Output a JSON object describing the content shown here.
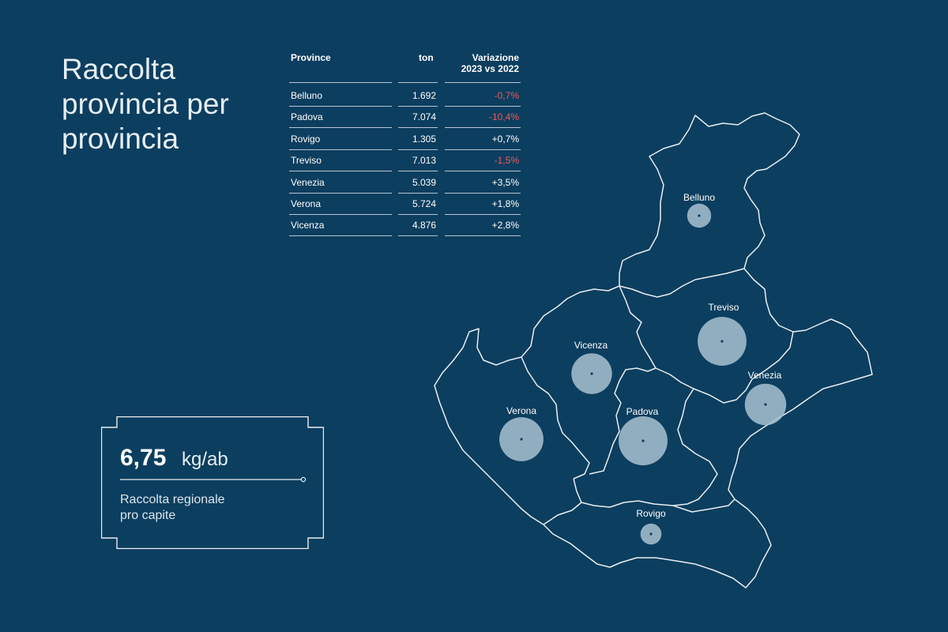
{
  "title": {
    "line1": "Raccolta",
    "line2": "provincia per",
    "line3": "provincia"
  },
  "table": {
    "headers": {
      "province": "Province",
      "ton": "ton",
      "variation_line1": "Variazione",
      "variation_line2": "2023 vs 2022"
    },
    "rows": [
      {
        "province": "Belluno",
        "ton": "1.692",
        "variation": "-0,7%",
        "negative": true
      },
      {
        "province": "Padova",
        "ton": "7.074",
        "variation": "-10,4%",
        "negative": true
      },
      {
        "province": "Rovigo",
        "ton": "1.305",
        "variation": "+0,7%",
        "negative": false
      },
      {
        "province": "Treviso",
        "ton": "7.013",
        "variation": "-1,5%",
        "negative": true
      },
      {
        "province": "Venezia",
        "ton": "5.039",
        "variation": "+3,5%",
        "negative": false
      },
      {
        "province": "Verona",
        "ton": "5.724",
        "variation": "+1,8%",
        "negative": false
      },
      {
        "province": "Vicenza",
        "ton": "4.876",
        "variation": "+2,8%",
        "negative": false
      }
    ]
  },
  "stat": {
    "value": "6,75",
    "unit": "kg/ab",
    "caption_line1": "Raccolta regionale",
    "caption_line2": "pro capite"
  },
  "map": {
    "provinces": [
      {
        "name": "Belluno",
        "ton": 1692
      },
      {
        "name": "Treviso",
        "ton": 7013
      },
      {
        "name": "Vicenza",
        "ton": 4876
      },
      {
        "name": "Venezia",
        "ton": 5039
      },
      {
        "name": "Verona",
        "ton": 5724
      },
      {
        "name": "Padova",
        "ton": 7074
      },
      {
        "name": "Rovigo",
        "ton": 1305
      }
    ]
  },
  "colors": {
    "background": "#0c3e5f",
    "negative": "#f05a5a",
    "bubble": "#a9c2d2",
    "outline": "#e9eef2"
  }
}
